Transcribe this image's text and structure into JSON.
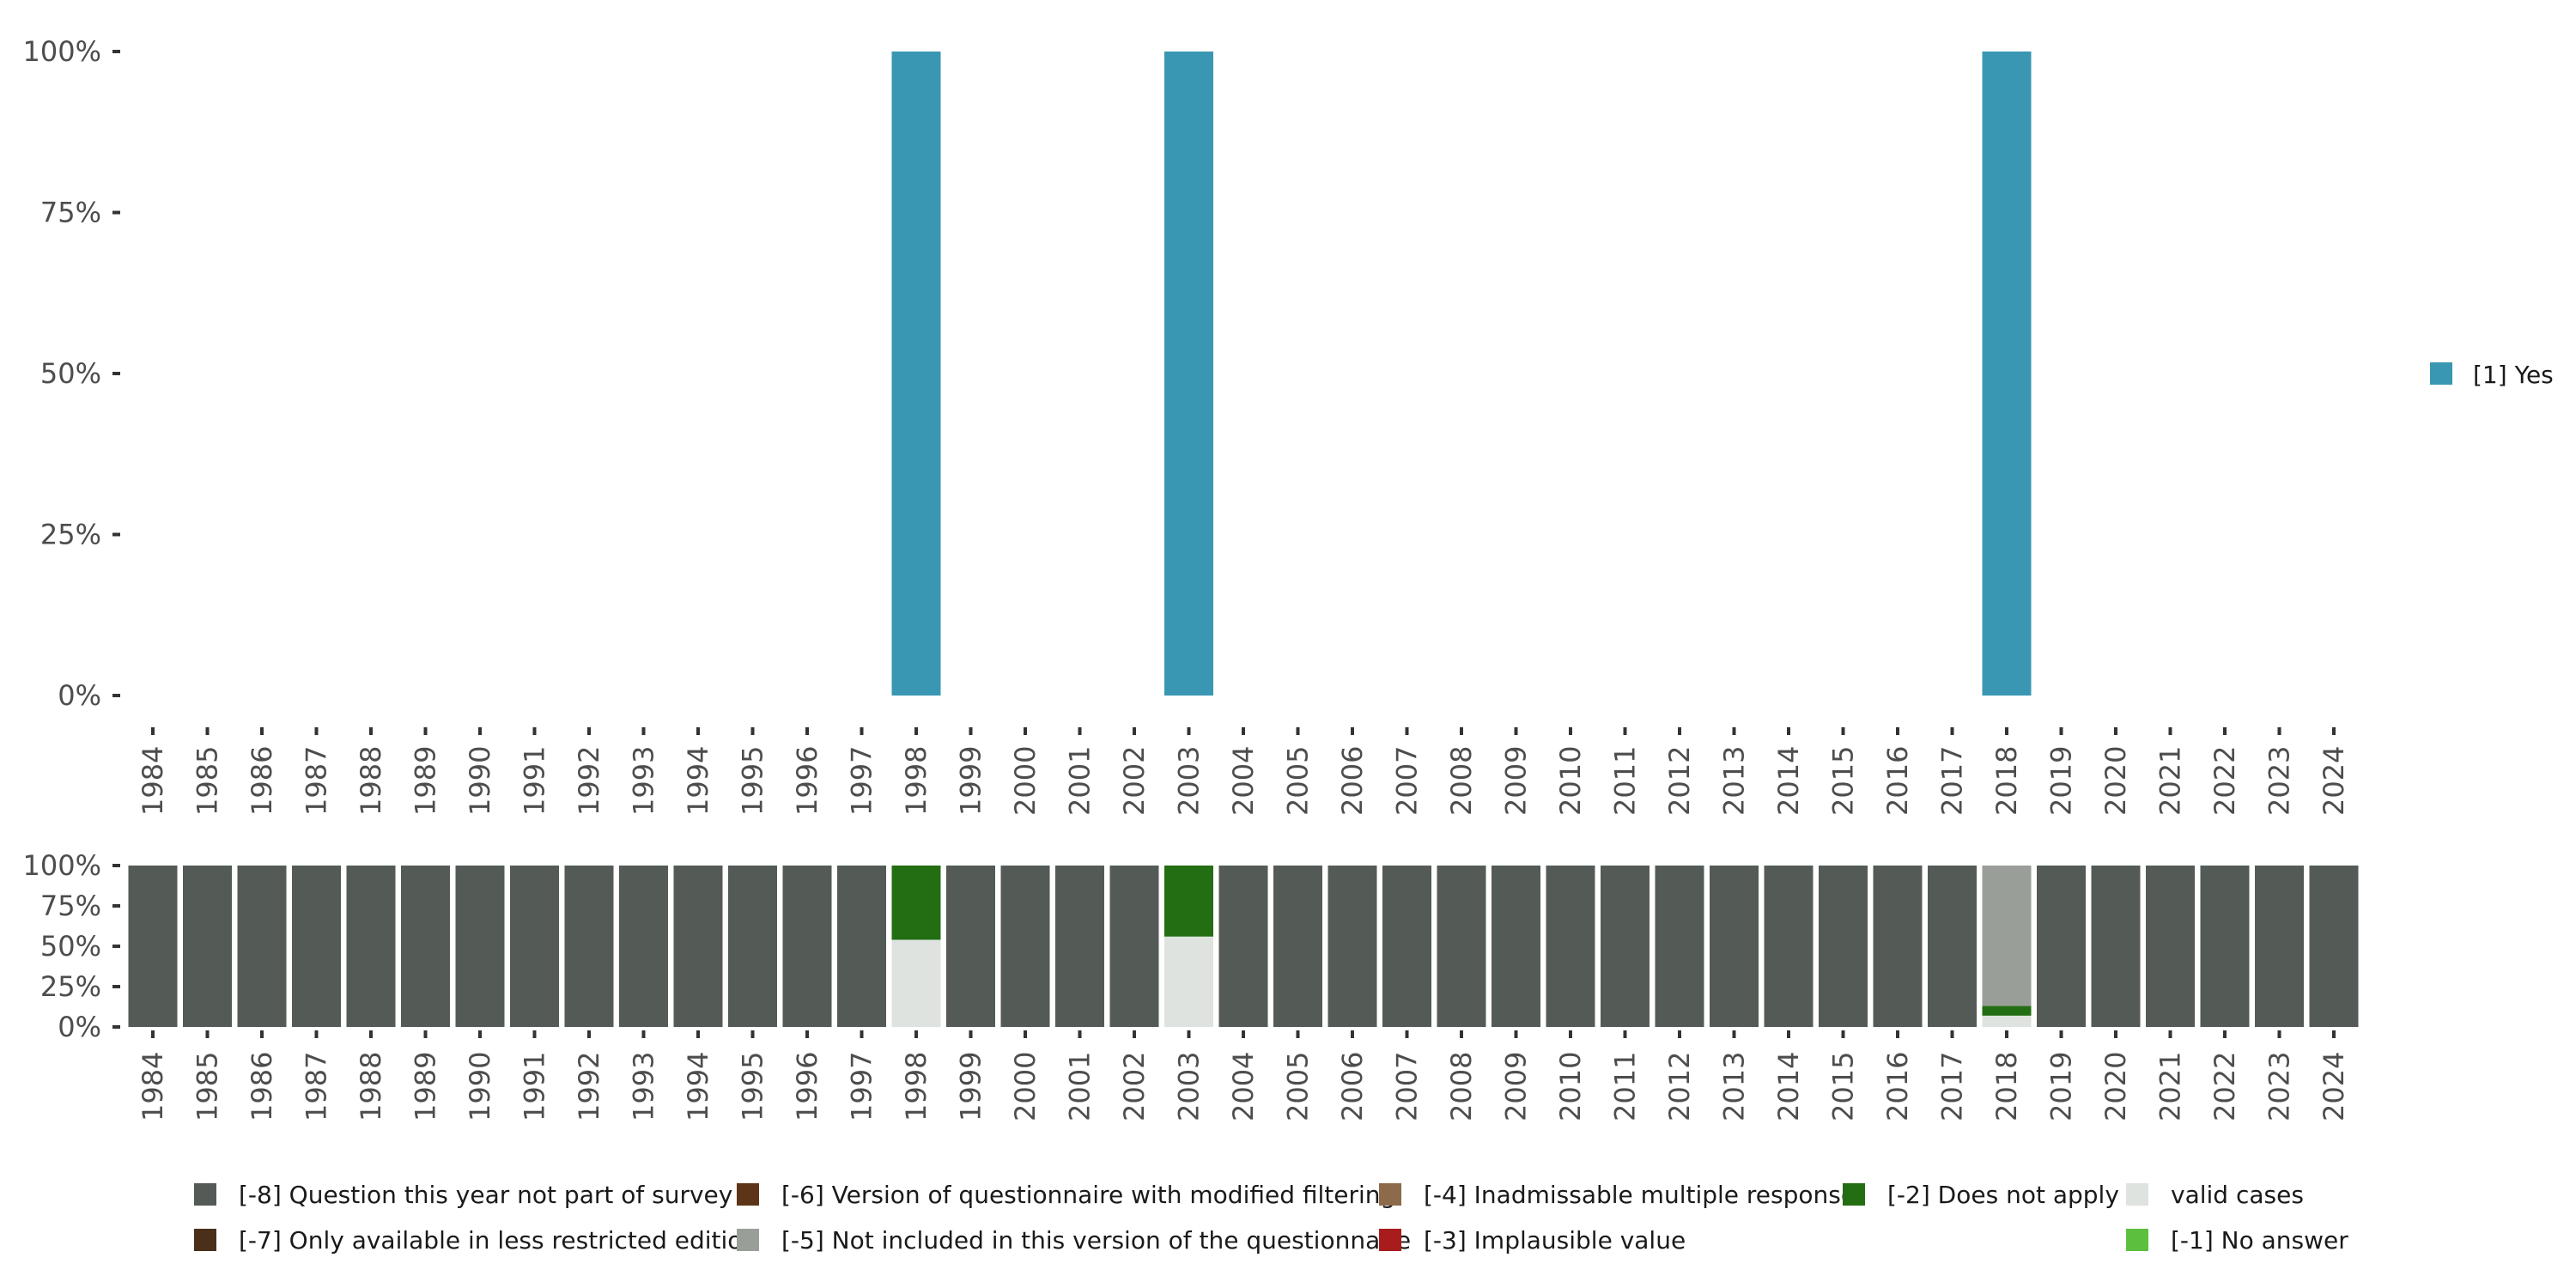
{
  "chart_data": [
    {
      "type": "bar",
      "name": "main-percent-chart",
      "x": [
        "1984",
        "1985",
        "1986",
        "1987",
        "1988",
        "1989",
        "1990",
        "1991",
        "1992",
        "1993",
        "1994",
        "1995",
        "1996",
        "1997",
        "1998",
        "1999",
        "2000",
        "2001",
        "2002",
        "2003",
        "2004",
        "2005",
        "2006",
        "2007",
        "2008",
        "2009",
        "2010",
        "2011",
        "2012",
        "2013",
        "2014",
        "2015",
        "2016",
        "2017",
        "2018",
        "2019",
        "2020",
        "2021",
        "2022",
        "2023",
        "2024"
      ],
      "y_ticks": [
        "0%",
        "25%",
        "50%",
        "75%",
        "100%"
      ],
      "ylim": [
        0,
        100
      ],
      "series": [
        {
          "name": "[1] Yes",
          "color": "#3a97b3",
          "points": [
            {
              "x": "1998",
              "value": 100
            },
            {
              "x": "2003",
              "value": 100
            },
            {
              "x": "2018",
              "value": 100
            }
          ]
        }
      ],
      "legend": [
        "[1] Yes"
      ],
      "legend_position": "right"
    },
    {
      "type": "bar",
      "name": "missing-codes-stacked-chart",
      "stacked": true,
      "x": [
        "1984",
        "1985",
        "1986",
        "1987",
        "1988",
        "1989",
        "1990",
        "1991",
        "1992",
        "1993",
        "1994",
        "1995",
        "1996",
        "1997",
        "1998",
        "1999",
        "2000",
        "2001",
        "2002",
        "2003",
        "2004",
        "2005",
        "2006",
        "2007",
        "2008",
        "2009",
        "2010",
        "2011",
        "2012",
        "2013",
        "2014",
        "2015",
        "2016",
        "2017",
        "2018",
        "2019",
        "2020",
        "2021",
        "2022",
        "2023",
        "2024"
      ],
      "y_ticks": [
        "0%",
        "25%",
        "50%",
        "75%",
        "100%"
      ],
      "ylim": [
        0,
        100
      ],
      "series": [
        {
          "name": "valid cases",
          "color": "#dfe3df",
          "values": [
            0,
            0,
            0,
            0,
            0,
            0,
            0,
            0,
            0,
            0,
            0,
            0,
            0,
            0,
            54,
            0,
            0,
            0,
            0,
            56,
            0,
            0,
            0,
            0,
            0,
            0,
            0,
            0,
            0,
            0,
            0,
            0,
            0,
            0,
            7,
            0,
            0,
            0,
            0,
            0,
            0
          ]
        },
        {
          "name": "[-2] Does not apply",
          "color": "#236e12",
          "values": [
            0,
            0,
            0,
            0,
            0,
            0,
            0,
            0,
            0,
            0,
            0,
            0,
            0,
            0,
            46,
            0,
            0,
            0,
            0,
            44,
            0,
            0,
            0,
            0,
            0,
            0,
            0,
            0,
            0,
            0,
            0,
            0,
            0,
            0,
            6,
            0,
            0,
            0,
            0,
            0,
            0
          ]
        },
        {
          "name": "[-5] Not included in this version of the questionnaire",
          "color": "#999e98",
          "values": [
            0,
            0,
            0,
            0,
            0,
            0,
            0,
            0,
            0,
            0,
            0,
            0,
            0,
            0,
            0,
            0,
            0,
            0,
            0,
            0,
            0,
            0,
            0,
            0,
            0,
            0,
            0,
            0,
            0,
            0,
            0,
            0,
            0,
            0,
            87,
            0,
            0,
            0,
            0,
            0,
            0
          ]
        },
        {
          "name": "[-8] Question this year not part of survey",
          "color": "#545b56",
          "values": [
            100,
            100,
            100,
            100,
            100,
            100,
            100,
            100,
            100,
            100,
            100,
            100,
            100,
            100,
            0,
            100,
            100,
            100,
            100,
            0,
            100,
            100,
            100,
            100,
            100,
            100,
            100,
            100,
            100,
            100,
            100,
            100,
            100,
            100,
            0,
            100,
            100,
            100,
            100,
            100,
            100
          ]
        }
      ],
      "legend": [
        {
          "label": "[-8] Question this year not part of survey",
          "color": "#545b56"
        },
        {
          "label": "[-6] Version of questionnaire with modified filtering",
          "color": "#5c3518"
        },
        {
          "label": "[-4] Inadmissable multiple response",
          "color": "#8c6a4a"
        },
        {
          "label": "[-2] Does not apply",
          "color": "#236e12"
        },
        {
          "label": "valid cases",
          "color": "#dfe3df"
        },
        {
          "label": "[-7] Only available in less restricted edition",
          "color": "#4a3018"
        },
        {
          "label": "[-5] Not included in this version of the questionnaire",
          "color": "#999e98"
        },
        {
          "label": "[-3] Implausible value",
          "color": "#a81c1c"
        },
        {
          "label": "[-1] No answer",
          "color": "#5cbf3e"
        }
      ],
      "legend_position": "bottom"
    }
  ]
}
